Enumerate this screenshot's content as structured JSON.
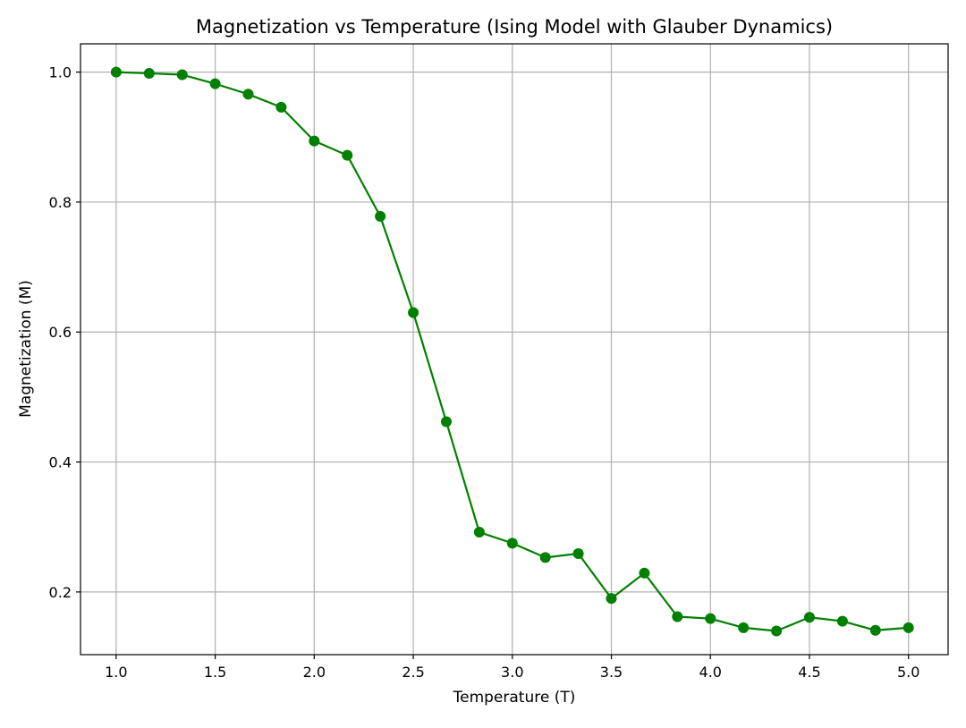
{
  "chart_data": {
    "type": "line",
    "title": "Magnetization vs Temperature (Ising Model with Glauber Dynamics)",
    "xlabel": "Temperature (T)",
    "ylabel": "Magnetization (M)",
    "xlim": [
      0.82,
      5.2
    ],
    "ylim": [
      0.1035,
      1.0435
    ],
    "xticks": [
      1.0,
      1.5,
      2.0,
      2.5,
      3.0,
      3.5,
      4.0,
      4.5,
      5.0
    ],
    "xtick_labels": [
      "1.0",
      "1.5",
      "2.0",
      "2.5",
      "3.0",
      "3.5",
      "4.0",
      "4.5",
      "5.0"
    ],
    "yticks": [
      0.2,
      0.4,
      0.6,
      0.8,
      1.0
    ],
    "ytick_labels": [
      "0.2",
      "0.4",
      "0.6",
      "0.8",
      "1.0"
    ],
    "grid": true,
    "colors": {
      "series": "#008000",
      "grid": "#b0b0b0",
      "axes": "#000000"
    },
    "series": [
      {
        "marker": "circle",
        "x": [
          1.0,
          1.1667,
          1.3333,
          1.5,
          1.6667,
          1.8333,
          2.0,
          2.1667,
          2.3333,
          2.5,
          2.6667,
          2.8333,
          3.0,
          3.1667,
          3.3333,
          3.5,
          3.6667,
          3.8333,
          4.0,
          4.1667,
          4.3333,
          4.5,
          4.6667,
          4.8333,
          5.0
        ],
        "y": [
          1.0,
          0.998,
          0.996,
          0.982,
          0.966,
          0.946,
          0.894,
          0.872,
          0.778,
          0.63,
          0.462,
          0.292,
          0.275,
          0.253,
          0.259,
          0.19,
          0.229,
          0.162,
          0.159,
          0.145,
          0.14,
          0.161,
          0.155,
          0.141,
          0.145
        ]
      }
    ]
  }
}
